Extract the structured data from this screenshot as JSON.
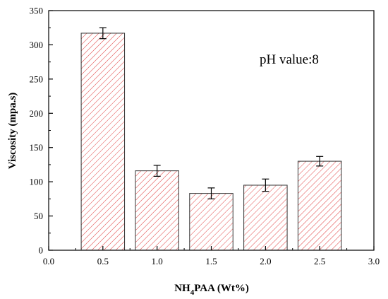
{
  "chart_data": {
    "type": "bar",
    "x": [
      0.5,
      1.0,
      1.5,
      2.0,
      2.5
    ],
    "values": [
      317,
      116,
      83,
      95,
      130
    ],
    "errors": [
      8,
      8,
      8,
      9,
      7
    ],
    "bar_width": 0.4,
    "xlim": [
      0.0,
      3.0
    ],
    "ylim": [
      0,
      350
    ],
    "xticks": [
      "0.0",
      "0.5",
      "1.0",
      "1.5",
      "2.0",
      "2.5",
      "3.0"
    ],
    "yticks": [
      "0",
      "50",
      "100",
      "150",
      "200",
      "250",
      "300",
      "350"
    ],
    "xlabel_main": "NH",
    "xlabel_sub": "4",
    "xlabel_rest": "PAA (Wt%)",
    "ylabel": "Viscosity (mpa.s)",
    "annotation": "pH value:8",
    "bar_edge_color": "#333333",
    "hatch_color": "#e04040",
    "grid": false,
    "legend": "none"
  }
}
